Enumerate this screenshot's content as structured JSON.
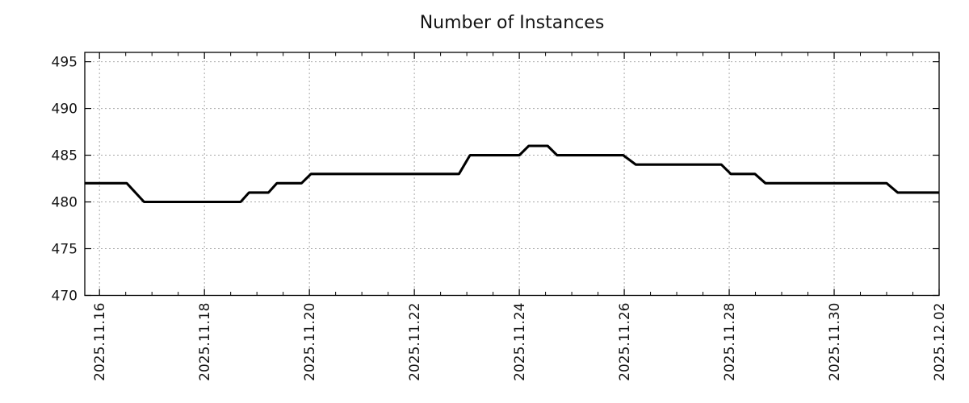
{
  "chart_data": {
    "type": "line",
    "title": "Number of Instances",
    "legend": "none",
    "grid": true,
    "colors": {
      "series": "#000000",
      "grid": "#a8a8a8",
      "axis": "#000000",
      "text": "#141414",
      "background": "#ffffff"
    },
    "x_axis": {
      "unit": "days since 2025.11.16",
      "lim": [
        -0.28,
        16
      ],
      "minor_tick_step": 0.5,
      "major_ticks": [
        {
          "day": 0,
          "label": "2025.11.16"
        },
        {
          "day": 2,
          "label": "2025.11.18"
        },
        {
          "day": 4,
          "label": "2025.11.20"
        },
        {
          "day": 6,
          "label": "2025.11.22"
        },
        {
          "day": 8,
          "label": "2025.11.24"
        },
        {
          "day": 10,
          "label": "2025.11.26"
        },
        {
          "day": 12,
          "label": "2025.11.28"
        },
        {
          "day": 14,
          "label": "2025.11.30"
        },
        {
          "day": 16,
          "label": "2025.12.02"
        }
      ]
    },
    "y_axis": {
      "lim": [
        470,
        496
      ],
      "ticks": [
        470,
        475,
        480,
        485,
        490,
        495
      ]
    },
    "series": [
      {
        "name": "instances",
        "color": "#000000",
        "points": [
          [
            -0.28,
            482
          ],
          [
            0.52,
            482
          ],
          [
            0.85,
            480
          ],
          [
            2.69,
            480
          ],
          [
            2.85,
            481
          ],
          [
            3.22,
            481
          ],
          [
            3.38,
            482
          ],
          [
            3.85,
            482
          ],
          [
            4.03,
            483
          ],
          [
            6.85,
            483
          ],
          [
            7.06,
            485
          ],
          [
            8.0,
            485
          ],
          [
            8.18,
            486
          ],
          [
            8.54,
            486
          ],
          [
            8.72,
            485
          ],
          [
            9.98,
            485
          ],
          [
            10.22,
            484
          ],
          [
            11.85,
            484
          ],
          [
            12.03,
            483
          ],
          [
            12.49,
            483
          ],
          [
            12.69,
            482
          ],
          [
            15.0,
            482
          ],
          [
            15.21,
            481
          ],
          [
            16.0,
            481
          ]
        ]
      }
    ]
  }
}
